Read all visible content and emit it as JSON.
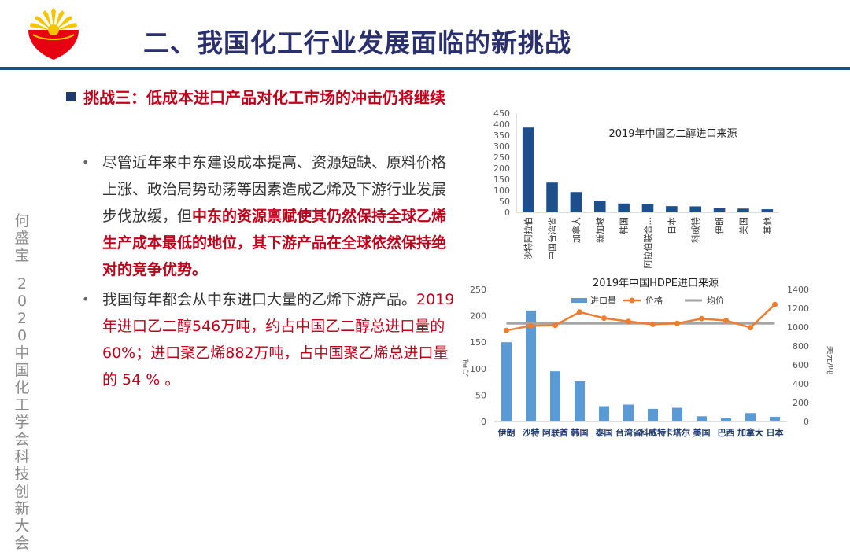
{
  "header": {
    "title": "二、我国化工行业发展面临的新挑战"
  },
  "challenge": {
    "label": "挑战三：低成本进口产品对化工市场的冲击仍将继续"
  },
  "sidebar": {
    "author": "何盛宝",
    "event": "2020中国化工学会科技创新大会"
  },
  "bullets": [
    {
      "normal_1": "尽管近年来中东建设成本提高、资源短缺、原料价格上涨、政治局势动荡等因素造成乙烯及下游行业发展步伐放缓，但",
      "emphasis": "中东的资源禀赋使其仍然保持全球乙烯生产成本最低的地位，其下游产品在全球依然保持绝对的竞争优势。"
    },
    {
      "normal_1": "我国每年都会从中东进口大量的乙烯下游产品。",
      "highlight": "2019年进口乙二醇546万吨，约占中国乙二醇总进口量的60%；进口聚乙烯882万吨，占中国聚乙烯总进口量的 54 % 。"
    }
  ],
  "chart_data": [
    {
      "type": "bar",
      "title": "2019年中国乙二醇进口来源",
      "categories": [
        "沙特阿拉伯",
        "中国台湾省",
        "加拿大",
        "新加坡",
        "韩国",
        "阿拉伯联合...",
        "日本",
        "科威特",
        "伊朗",
        "美国",
        "其他"
      ],
      "values": [
        385,
        135,
        92,
        52,
        40,
        39,
        28,
        27,
        20,
        17,
        14
      ],
      "ylim": [
        0,
        450
      ],
      "yticks": [
        0,
        50,
        100,
        150,
        200,
        250,
        300,
        350,
        400,
        450
      ],
      "color": "#1f4e8c",
      "grid": false
    },
    {
      "type": "bar",
      "title": "2019年中国HDPE进口来源",
      "categories": [
        "伊朗",
        "沙特",
        "阿联酋",
        "韩国",
        "泰国",
        "台湾省",
        "科威特",
        "卡塔尔",
        "美国",
        "巴西",
        "加拿大",
        "日本"
      ],
      "series": [
        {
          "name": "进口量",
          "type": "bar",
          "axis": "left",
          "color": "#5b9bd5",
          "values": [
            150,
            210,
            95,
            76,
            29,
            32,
            24,
            26,
            10,
            6,
            16,
            9
          ]
        },
        {
          "name": "价格",
          "type": "line",
          "axis": "right",
          "color": "#ed7d31",
          "values": [
            965,
            1015,
            1020,
            1160,
            1095,
            1060,
            1030,
            1040,
            1090,
            1070,
            995,
            1240
          ]
        },
        {
          "name": "均价",
          "type": "line",
          "axis": "right",
          "color": "#a5a5a5",
          "values": [
            1040,
            1040,
            1040,
            1040,
            1040,
            1040,
            1040,
            1040,
            1040,
            1040,
            1040,
            1040
          ]
        }
      ],
      "ylabel_left": "万吨",
      "ylabel_right": "美元/吨",
      "ylim_left": [
        0,
        250
      ],
      "yticks_left": [
        0,
        50,
        100,
        150,
        200,
        250
      ],
      "ylim_right": [
        0,
        1400
      ],
      "yticks_right": [
        0,
        200,
        400,
        600,
        800,
        1000,
        1200,
        1400
      ],
      "legend_position": "top",
      "grid": false
    }
  ]
}
